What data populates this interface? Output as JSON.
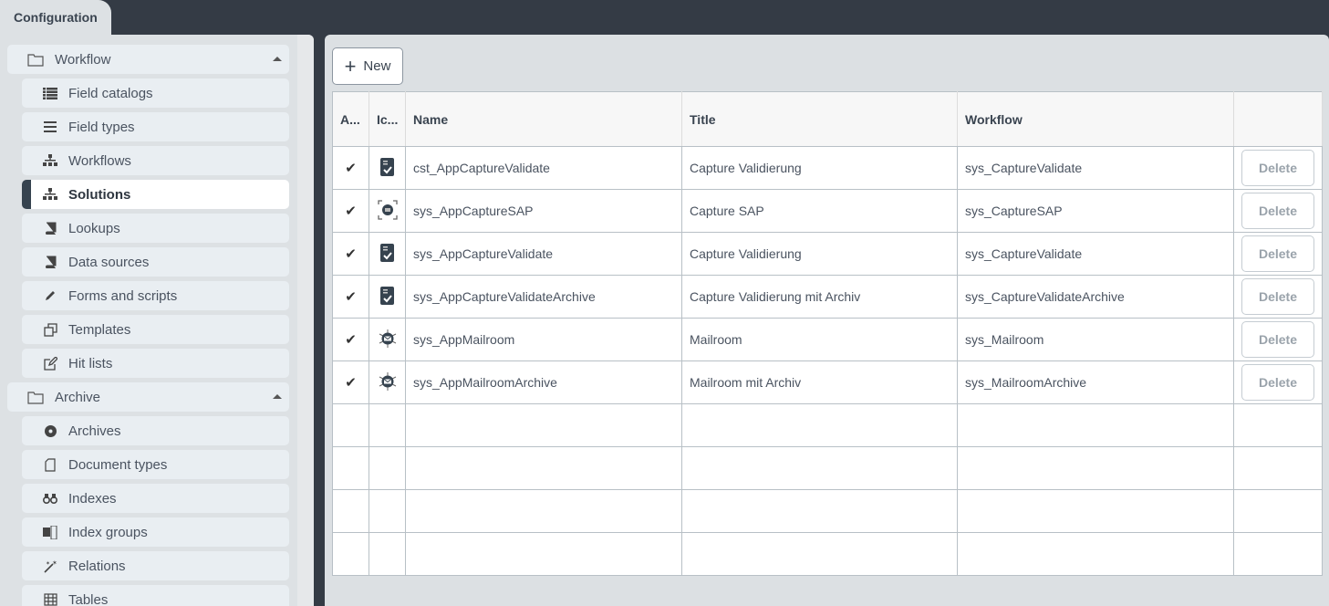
{
  "tab": {
    "label": "Configuration"
  },
  "sidebar": {
    "groups": [
      {
        "label": "Workflow",
        "icon": "folder-icon",
        "expanded": true,
        "items": [
          {
            "label": "Field catalogs",
            "icon": "list-icon"
          },
          {
            "label": "Field types",
            "icon": "bars-icon"
          },
          {
            "label": "Workflows",
            "icon": "sitemap-icon"
          },
          {
            "label": "Solutions",
            "icon": "sitemap-icon",
            "active": true
          },
          {
            "label": "Lookups",
            "icon": "book-icon"
          },
          {
            "label": "Data sources",
            "icon": "book-icon"
          },
          {
            "label": "Forms and scripts",
            "icon": "pencil-icon"
          },
          {
            "label": "Templates",
            "icon": "clone-icon"
          },
          {
            "label": "Hit lists",
            "icon": "edit-icon"
          }
        ]
      },
      {
        "label": "Archive",
        "icon": "folder-icon",
        "expanded": true,
        "items": [
          {
            "label": "Archives",
            "icon": "cubes-icon"
          },
          {
            "label": "Document types",
            "icon": "file-icon"
          },
          {
            "label": "Indexes",
            "icon": "binoculars-icon"
          },
          {
            "label": "Index groups",
            "icon": "puzzle-icon"
          },
          {
            "label": "Relations",
            "icon": "magic-icon"
          },
          {
            "label": "Tables",
            "icon": "table-icon"
          }
        ]
      }
    ]
  },
  "toolbar": {
    "new_label": "New"
  },
  "table": {
    "columns": [
      "A...",
      "Ic...",
      "Name",
      "Title",
      "Workflow",
      ""
    ],
    "rows": [
      {
        "active": true,
        "icon": "capture-validate-icon",
        "name": "cst_AppCaptureValidate",
        "title": "Capture Validierung",
        "workflow": "sys_CaptureValidate",
        "action": "Delete"
      },
      {
        "active": true,
        "icon": "capture-sap-icon",
        "name": "sys_AppCaptureSAP",
        "title": "Capture SAP",
        "workflow": "sys_CaptureSAP",
        "action": "Delete"
      },
      {
        "active": true,
        "icon": "capture-validate-icon",
        "name": "sys_AppCaptureValidate",
        "title": "Capture Validierung",
        "workflow": "sys_CaptureValidate",
        "action": "Delete"
      },
      {
        "active": true,
        "icon": "capture-validate-icon",
        "name": "sys_AppCaptureValidateArchive",
        "title": "Capture Validierung mit Archiv",
        "workflow": "sys_CaptureValidateArchive",
        "action": "Delete"
      },
      {
        "active": true,
        "icon": "mailroom-icon",
        "name": "sys_AppMailroom",
        "title": "Mailroom",
        "workflow": "sys_Mailroom",
        "action": "Delete"
      },
      {
        "active": true,
        "icon": "mailroom-icon",
        "name": "sys_AppMailroomArchive",
        "title": "Mailroom mit Archiv",
        "workflow": "sys_MailroomArchive",
        "action": "Delete"
      }
    ],
    "empty_rows": 4
  }
}
